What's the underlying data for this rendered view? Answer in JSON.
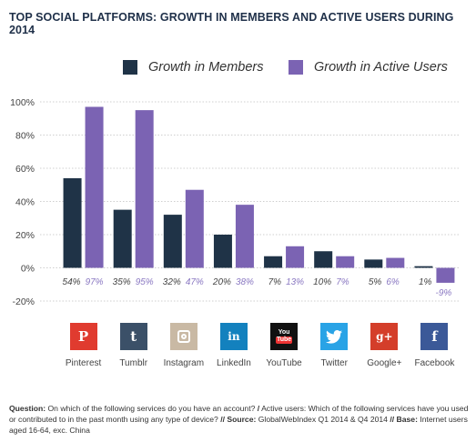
{
  "title": "TOP SOCIAL PLATFORMS: GROWTH IN MEMBERS AND ACTIVE USERS DURING 2014",
  "colors": {
    "members": "#1f3347",
    "active": "#7b63b3",
    "active_label": "#8a78c2"
  },
  "chart_data": {
    "type": "bar",
    "categories": [
      "Pinterest",
      "Tumblr",
      "Instagram",
      "LinkedIn",
      "YouTube",
      "Twitter",
      "Google+",
      "Facebook"
    ],
    "series": [
      {
        "name": "Growth in Members",
        "values": [
          54,
          35,
          32,
          20,
          7,
          10,
          5,
          1
        ]
      },
      {
        "name": "Growth in Active Users",
        "values": [
          97,
          95,
          47,
          38,
          13,
          7,
          6,
          -9
        ]
      }
    ],
    "value_labels": {
      "members": [
        "54%",
        "35%",
        "32%",
        "20%",
        "7%",
        "10%",
        "5%",
        "1%"
      ],
      "active": [
        "97%",
        "95%",
        "47%",
        "38%",
        "13%",
        "7%",
        "6%",
        "-9%"
      ]
    },
    "yticks": [
      "100%",
      "80%",
      "60%",
      "40%",
      "20%",
      "0%",
      "-20%"
    ],
    "ytick_values": [
      100,
      80,
      60,
      40,
      20,
      0,
      -20
    ],
    "ylim": [
      -20,
      100
    ],
    "grid": true,
    "legend": "top"
  },
  "platform_icons": [
    {
      "name": "Pinterest",
      "icon": "pinterest-icon",
      "glyph": "P",
      "color": "#e03b2f"
    },
    {
      "name": "Tumblr",
      "icon": "tumblr-icon",
      "glyph": "t",
      "color": "#3b5068"
    },
    {
      "name": "Instagram",
      "icon": "instagram-icon",
      "glyph": "",
      "color": "#c9b9a4"
    },
    {
      "name": "LinkedIn",
      "icon": "linkedin-icon",
      "glyph": "in",
      "color": "#1381be"
    },
    {
      "name": "YouTube",
      "icon": "youtube-icon",
      "glyph": "You Tube",
      "color": "#111111"
    },
    {
      "name": "Twitter",
      "icon": "twitter-icon",
      "glyph": "",
      "color": "#29a3e6"
    },
    {
      "name": "Google+",
      "icon": "google-plus-icon",
      "glyph": "g+",
      "color": "#d43e2a"
    },
    {
      "name": "Facebook",
      "icon": "facebook-icon",
      "glyph": "f",
      "color": "#3b5998"
    }
  ],
  "footnote": {
    "q_label": "Question:",
    "q_text": "On which of the following services do you have an account?",
    "sep1": "/",
    "active_text": "Active users: Which of the following services have you used or contributed to in the past month using any type of device?",
    "sep2": "//",
    "source_label": "Source:",
    "source_text": "GlobalWebIndex Q1 2014 & Q4 2014",
    "sep3": "//",
    "base_label": "Base:",
    "base_text": "Internet users aged 16-64, exc. China"
  }
}
